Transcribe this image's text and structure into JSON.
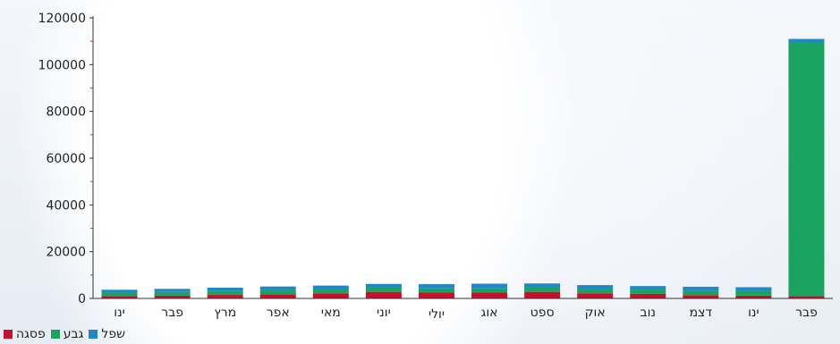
{
  "chart_data": {
    "type": "bar",
    "stacked": true,
    "categories": [
      "ינו",
      "פבר",
      "מרץ",
      "אפר",
      "מאי",
      "יוני",
      "יולי",
      "אוג",
      "ספט",
      "אוק",
      "נוב",
      "דצמ",
      "ינו",
      "פבר"
    ],
    "series": [
      {
        "name": "פסגה",
        "color": "#c8102e",
        "values": [
          1000,
          1200,
          1500,
          1800,
          2200,
          2800,
          2500,
          2500,
          2800,
          2200,
          2000,
          1400,
          1200,
          1000
        ]
      },
      {
        "name": "גבע",
        "color": "#1aa260",
        "values": [
          1500,
          1600,
          1700,
          1800,
          1800,
          1800,
          1800,
          1800,
          1800,
          1800,
          1800,
          1900,
          1900,
          108500
        ]
      },
      {
        "name": "שפל",
        "color": "#1e88c8",
        "values": [
          1200,
          1300,
          1400,
          1500,
          1500,
          1600,
          1800,
          2000,
          1800,
          1700,
          1500,
          1700,
          1700,
          1500
        ]
      }
    ],
    "ylim": [
      0,
      120000
    ],
    "yticks": [
      "0",
      "20000",
      "40000",
      "60000",
      "80000",
      "100000",
      "120000"
    ],
    "title": "",
    "xlabel": "",
    "ylabel": "",
    "legend_position": "bottom-left"
  }
}
